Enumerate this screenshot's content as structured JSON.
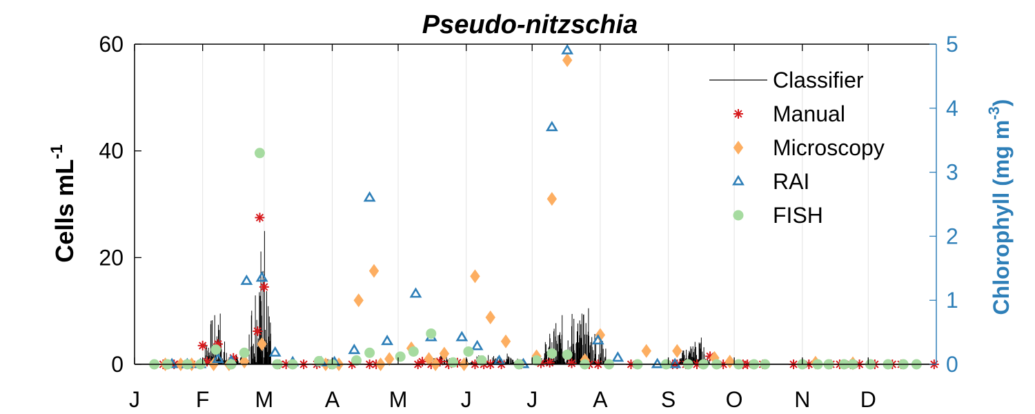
{
  "chart_data": {
    "type": "scatter",
    "title": "Pseudo-nitzschia",
    "ylabel_main": "Cells mL",
    "ylabel_sup": "-1",
    "ylabel_right_main": "Chlorophyll (mg m",
    "ylabel_right_sup": "-3",
    "ylabel_right_close": ")",
    "xlim": [
      0,
      365
    ],
    "ylim_left": [
      0,
      60
    ],
    "ylim_right": [
      0,
      5
    ],
    "x_ticks": [
      {
        "label": "J",
        "day": 0
      },
      {
        "label": "F",
        "day": 31
      },
      {
        "label": "M",
        "day": 59
      },
      {
        "label": "A",
        "day": 90
      },
      {
        "label": "M",
        "day": 120
      },
      {
        "label": "J",
        "day": 151
      },
      {
        "label": "J",
        "day": 181
      },
      {
        "label": "A",
        "day": 212
      },
      {
        "label": "S",
        "day": 243
      },
      {
        "label": "O",
        "day": 273
      },
      {
        "label": "N",
        "day": 304
      },
      {
        "label": "D",
        "day": 334
      }
    ],
    "y_ticks_left": [
      0,
      20,
      40,
      60
    ],
    "y_ticks_right": [
      0,
      1,
      2,
      3,
      4,
      5
    ],
    "grid": "vertical",
    "legend_position": "top-right",
    "colors": {
      "classifier": "#000000",
      "manual": "#d7191c",
      "microscopy": "#fdae61",
      "rai": "#2e7fb8",
      "fish": "#a6dba0",
      "right_axis": "#2e7fb8"
    },
    "series": [
      {
        "name": "Classifier",
        "type": "line",
        "axis": "left",
        "bursts": [
          {
            "start": 31,
            "end": 42,
            "peak": 9.5
          },
          {
            "start": 45,
            "end": 52,
            "peak": 2.5
          },
          {
            "start": 52,
            "end": 62,
            "peak": 25
          },
          {
            "start": 84,
            "end": 92,
            "peak": 1
          },
          {
            "start": 134,
            "end": 145,
            "peak": 2
          },
          {
            "start": 148,
            "end": 178,
            "peak": 2
          },
          {
            "start": 185,
            "end": 215,
            "peak": 10.5
          },
          {
            "start": 248,
            "end": 262,
            "peak": 5
          }
        ]
      },
      {
        "name": "Manual",
        "marker": "asterisk",
        "axis": "left",
        "points": [
          [
            13,
            0
          ],
          [
            18,
            0
          ],
          [
            21,
            0
          ],
          [
            26,
            0
          ],
          [
            31,
            3.5
          ],
          [
            33,
            0.5
          ],
          [
            38,
            3.8
          ],
          [
            45,
            1.2
          ],
          [
            56,
            6.2
          ],
          [
            57,
            27.5
          ],
          [
            59,
            14.5
          ],
          [
            66,
            0
          ],
          [
            69,
            0
          ],
          [
            77,
            0
          ],
          [
            83,
            0
          ],
          [
            89,
            0
          ],
          [
            99,
            0
          ],
          [
            107,
            0
          ],
          [
            110,
            0
          ],
          [
            129,
            0
          ],
          [
            131,
            0.5
          ],
          [
            135,
            0
          ],
          [
            139,
            0.5
          ],
          [
            143,
            0
          ],
          [
            147,
            0.3
          ],
          [
            155,
            0
          ],
          [
            159,
            0
          ],
          [
            162,
            0
          ],
          [
            167,
            0
          ],
          [
            176,
            0
          ],
          [
            185,
            0.2
          ],
          [
            189,
            0.3
          ],
          [
            199,
            0.2
          ],
          [
            205,
            0.3
          ],
          [
            207,
            0
          ],
          [
            211,
            0
          ],
          [
            226,
            0
          ],
          [
            242,
            0
          ],
          [
            245,
            0
          ],
          [
            247,
            0
          ],
          [
            251,
            0
          ],
          [
            256,
            0
          ],
          [
            262,
            1.5
          ],
          [
            268,
            0
          ],
          [
            277,
            0
          ],
          [
            279,
            0
          ],
          [
            282,
            0
          ],
          [
            286,
            0
          ],
          [
            300,
            0
          ],
          [
            307,
            0
          ],
          [
            311,
            0
          ],
          [
            317,
            0
          ],
          [
            321,
            0
          ],
          [
            326,
            0
          ],
          [
            330,
            0
          ],
          [
            335,
            0
          ],
          [
            337,
            0
          ],
          [
            345,
            0
          ],
          [
            349,
            0
          ],
          [
            364,
            0
          ]
        ]
      },
      {
        "name": "Microscopy",
        "marker": "diamond",
        "axis": "left",
        "points": [
          [
            14,
            0
          ],
          [
            21,
            0
          ],
          [
            26,
            0
          ],
          [
            36,
            0
          ],
          [
            43,
            0
          ],
          [
            50,
            0.5
          ],
          [
            58,
            3.8
          ],
          [
            87,
            0
          ],
          [
            93,
            0
          ],
          [
            102,
            12
          ],
          [
            109,
            17.5
          ],
          [
            112,
            0
          ],
          [
            116,
            1
          ],
          [
            126,
            3
          ],
          [
            134,
            1
          ],
          [
            137,
            0
          ],
          [
            141,
            2
          ],
          [
            150,
            0
          ],
          [
            155,
            16.5
          ],
          [
            162,
            8.8
          ],
          [
            169,
            4.3
          ],
          [
            183,
            1.5
          ],
          [
            190,
            31
          ],
          [
            197,
            57
          ],
          [
            205,
            0.8
          ],
          [
            212,
            5.5
          ],
          [
            233,
            2.5
          ],
          [
            247,
            2.5
          ],
          [
            264,
            1.2
          ],
          [
            271,
            0.5
          ],
          [
            310,
            0.3
          ],
          [
            327,
            0.2
          ]
        ]
      },
      {
        "name": "RAI",
        "marker": "triangle",
        "axis": "right",
        "points": [
          [
            17,
            0
          ],
          [
            24,
            0
          ],
          [
            30,
            0
          ],
          [
            38,
            0.08
          ],
          [
            44,
            0.05
          ],
          [
            51,
            1.3
          ],
          [
            58,
            1.35
          ],
          [
            64,
            0.18
          ],
          [
            72,
            0.03
          ],
          [
            85,
            0.03
          ],
          [
            91,
            0.03
          ],
          [
            100,
            0.22
          ],
          [
            107,
            2.6
          ],
          [
            115,
            0.36
          ],
          [
            128,
            1.1
          ],
          [
            135,
            0.42
          ],
          [
            149,
            0.42
          ],
          [
            156,
            0.28
          ],
          [
            166,
            0.05
          ],
          [
            177,
            0
          ],
          [
            190,
            3.7
          ],
          [
            197,
            4.9
          ],
          [
            211,
            0.37
          ],
          [
            220,
            0.1
          ],
          [
            238,
            0
          ],
          [
            246,
            0
          ]
        ]
      },
      {
        "name": "FISH",
        "marker": "circle",
        "axis": "right",
        "points": [
          [
            9,
            0
          ],
          [
            15,
            0
          ],
          [
            24,
            0
          ],
          [
            30,
            0
          ],
          [
            37,
            0.23
          ],
          [
            44,
            0
          ],
          [
            50,
            0.18
          ],
          [
            57,
            3.3
          ],
          [
            65,
            0
          ],
          [
            72,
            0
          ],
          [
            84,
            0.05
          ],
          [
            90,
            0
          ],
          [
            101,
            0.06
          ],
          [
            107,
            0.18
          ],
          [
            121,
            0.12
          ],
          [
            127,
            0.2
          ],
          [
            135,
            0.48
          ],
          [
            145,
            0.03
          ],
          [
            152,
            0.2
          ],
          [
            158,
            0.06
          ],
          [
            175,
            0
          ],
          [
            183,
            0.06
          ],
          [
            190,
            0.17
          ],
          [
            197,
            0.15
          ],
          [
            205,
            0
          ],
          [
            216,
            0
          ],
          [
            229,
            0
          ],
          [
            242,
            0
          ],
          [
            252,
            0
          ],
          [
            259,
            0
          ],
          [
            265,
            0
          ],
          [
            275,
            0
          ],
          [
            282,
            0
          ],
          [
            287,
            0
          ],
          [
            304,
            0
          ],
          [
            311,
            0
          ],
          [
            316,
            0
          ],
          [
            323,
            0
          ],
          [
            327,
            0
          ],
          [
            335,
            0
          ],
          [
            343,
            0
          ],
          [
            350,
            0
          ],
          [
            356,
            0
          ]
        ]
      }
    ]
  }
}
